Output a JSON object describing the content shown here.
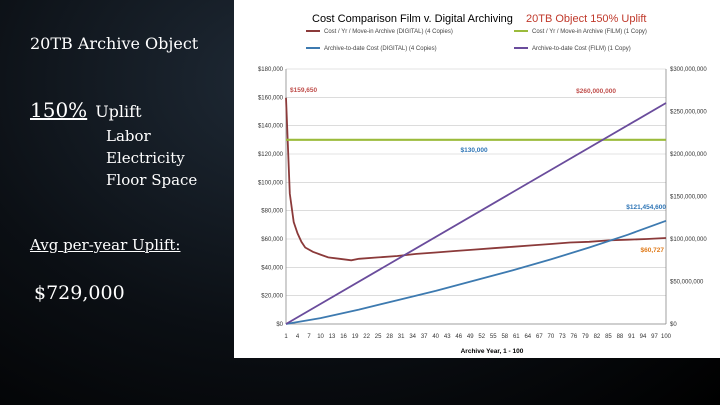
{
  "slide": {
    "title": "20TB Archive Object",
    "uplift_pct": "150%",
    "uplift_word": "Uplift",
    "factors": [
      "Labor",
      "Electricity",
      "Floor Space"
    ],
    "avg_label": "Avg per-year Uplift:",
    "avg_value": "$729,000"
  },
  "colors": {
    "digital_cost": "#8b3a3a",
    "film_cost": "#9bbb3c",
    "digital_total": "#3d7ab0",
    "film_total": "#6a4c9c",
    "annotation_red": "#c0504d",
    "annotation_blue": "#2e75b6",
    "annotation_orange": "#e07b1a"
  },
  "chart_data": {
    "type": "line",
    "title_main": "Cost Comparison Film v. Digital Archiving",
    "title_highlight": "20TB Object 150% Uplift",
    "xlabel": "Archive Year, 1 - 100",
    "xlim": [
      1,
      100
    ],
    "left_axis": {
      "ylim": [
        0,
        180000
      ],
      "ticks": [
        "$0",
        "$20,000",
        "$40,000",
        "$60,000",
        "$80,000",
        "$100,000",
        "$120,000",
        "$140,000",
        "$160,000",
        "$180,000"
      ]
    },
    "right_axis": {
      "ylim": [
        0,
        300000000
      ],
      "ticks": [
        "$0",
        "$50,000,000",
        "$100,000,000",
        "$150,000,000",
        "$200,000,000",
        "$250,000,000",
        "$300,000,000"
      ]
    },
    "x_tick_labels": [
      "1",
      "4",
      "7",
      "10",
      "13",
      "16",
      "19",
      "22",
      "25",
      "28",
      "31",
      "34",
      "37",
      "40",
      "43",
      "46",
      "49",
      "52",
      "55",
      "58",
      "61",
      "64",
      "67",
      "70",
      "73",
      "76",
      "79",
      "82",
      "85",
      "88",
      "91",
      "94",
      "97",
      "100"
    ],
    "legend": [
      {
        "name": "Cost / Yr / Move-in Archive (DIGITAL) (4 Copies)",
        "color": "#8b3a3a"
      },
      {
        "name": "Cost / Yr / Move-in Archive (FILM) (1 Copy)",
        "color": "#9bbb3c"
      },
      {
        "name": "Archive-to-date Cost (DIGITAL) (4 Copies)",
        "color": "#3d7ab0"
      },
      {
        "name": "Archive-to-date Cost (FILM) (1 Copy)",
        "color": "#6a4c9c"
      }
    ],
    "series": [
      {
        "name": "Cost / Yr / Move-in Archive (DIGITAL) (4 Copies)",
        "axis": "left",
        "x": [
          1,
          2,
          3,
          4,
          5,
          6,
          8,
          10,
          12,
          15,
          18,
          20,
          25,
          30,
          35,
          40,
          45,
          50,
          55,
          60,
          65,
          70,
          75,
          80,
          85,
          90,
          95,
          100
        ],
        "values": [
          159650,
          92000,
          72000,
          64000,
          58000,
          54000,
          51000,
          49000,
          47000,
          46000,
          45000,
          46000,
          47000,
          48000,
          49500,
          50500,
          51500,
          52500,
          53500,
          54500,
          55500,
          56500,
          57500,
          58000,
          59000,
          59500,
          60000,
          60727
        ]
      },
      {
        "name": "Cost / Yr / Move-in Archive (FILM) (1 Copy)",
        "axis": "left",
        "x": [
          1,
          100
        ],
        "values": [
          130000,
          130000
        ]
      },
      {
        "name": "Archive-to-date Cost (DIGITAL) (4 Copies)",
        "axis": "right",
        "x": [
          1,
          10,
          20,
          30,
          40,
          50,
          60,
          70,
          80,
          90,
          100
        ],
        "values": [
          0,
          7000000,
          17000000,
          28000000,
          39000000,
          51000000,
          63000000,
          76000000,
          90000000,
          105000000,
          121454600
        ]
      },
      {
        "name": "Archive-to-date Cost (FILM) (1 Copy)",
        "axis": "right",
        "x": [
          1,
          100
        ],
        "values": [
          0,
          260000000
        ]
      }
    ],
    "annotations": [
      {
        "text": "$159,650",
        "x": 1,
        "y": 159650,
        "axis": "left",
        "color": "#c0504d"
      },
      {
        "text": "$130,000",
        "x": 50,
        "y": 130000,
        "axis": "left",
        "color": "#2e75b6"
      },
      {
        "text": "$260,000,000",
        "x": 88,
        "y": 260000000,
        "axis": "right",
        "color": "#c0504d"
      },
      {
        "text": "$121,454,600",
        "x": 100,
        "y": 121454600,
        "axis": "right",
        "color": "#2e75b6"
      },
      {
        "text": "$60,727",
        "x": 100,
        "y": 60727,
        "axis": "left",
        "color": "#e07b1a"
      }
    ]
  }
}
